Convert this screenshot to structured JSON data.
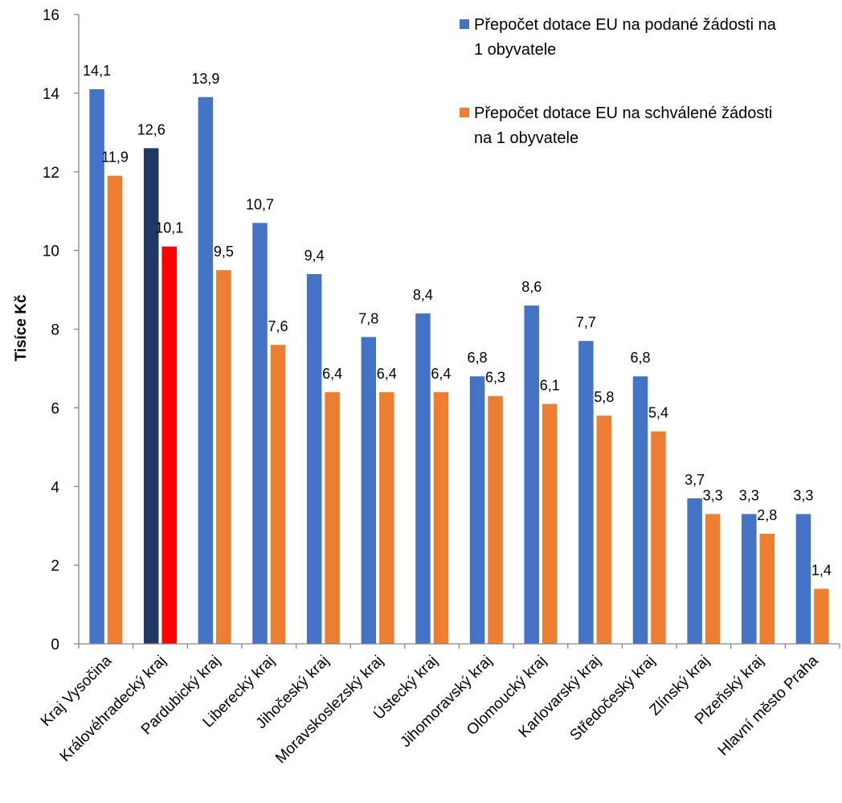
{
  "chart_data": {
    "type": "bar",
    "title": "",
    "xlabel": "",
    "ylabel": "Tisíce Kč",
    "ylim": [
      0,
      16
    ],
    "yticks": [
      "0",
      "2",
      "4",
      "6",
      "8",
      "10",
      "12",
      "14",
      "16"
    ],
    "grid": false,
    "legend_position": "top-right",
    "categories": [
      "Kraj Vysočina",
      "Královéhradecký kraj",
      "Pardubický kraj",
      "Liberecký kraj",
      "Jihočeský kraj",
      "Moravskoslezský kraj",
      "Ústecký kraj",
      "Jihomoravský kraj",
      "Olomoucký kraj",
      "Karlovarský kraj",
      "Středočeský kraj",
      "Zlínský kraj",
      "Plzeňský kraj",
      "Hlavní město Praha"
    ],
    "series": [
      {
        "name": "Přepočet dotace EU na podané žádosti na 1 obyvatele",
        "legend_lines": [
          "Přepočet dotace EU na podané žádosti na",
          "1 obyvatele"
        ],
        "color": "#4472C4",
        "highlight_color": "#203864",
        "highlight_index": 1,
        "values": [
          14.1,
          12.6,
          13.9,
          10.7,
          9.4,
          7.8,
          8.4,
          6.8,
          8.6,
          7.7,
          6.8,
          3.7,
          3.3,
          3.3
        ],
        "labels": [
          "14,1",
          "12,6",
          "13,9",
          "10,7",
          "9,4",
          "7,8",
          "8,4",
          "6,8",
          "8,6",
          "7,7",
          "6,8",
          "3,7",
          "3,3",
          "3,3"
        ]
      },
      {
        "name": "Přepočet dotace EU na schválené žádosti na 1 obyvatele",
        "legend_lines": [
          "Přepočet dotace EU na schválené žádosti",
          "na 1 obyvatele"
        ],
        "color": "#ED7D31",
        "highlight_color": "#FF0000",
        "highlight_index": 1,
        "values": [
          11.9,
          10.1,
          9.5,
          7.6,
          6.4,
          6.4,
          6.4,
          6.3,
          6.1,
          5.8,
          5.4,
          3.3,
          2.8,
          1.4
        ],
        "labels": [
          "11,9",
          "10,1",
          "9,5",
          "7,6",
          "6,4",
          "6,4",
          "6,4",
          "6,3",
          "6,1",
          "5,8",
          "5,4",
          "3,3",
          "2,8",
          "1,4"
        ]
      }
    ],
    "axis_color": "#868686"
  }
}
